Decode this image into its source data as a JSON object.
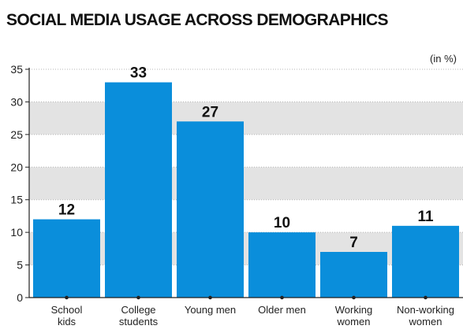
{
  "title": "SOCIAL MEDIA USAGE ACROSS DEMOGRAPHICS",
  "unit_note": "(in %)",
  "colors": {
    "bar": "#0a8edb",
    "band": "#e3e3e3",
    "axis": "#222222",
    "grid": "#b5b5b5"
  },
  "chart_data": {
    "type": "bar",
    "title": "SOCIAL MEDIA USAGE ACROSS DEMOGRAPHICS",
    "categories": [
      [
        "School",
        "kids"
      ],
      [
        "College",
        "students"
      ],
      [
        "Young men"
      ],
      [
        "Older men"
      ],
      [
        "Working",
        "women"
      ],
      [
        "Non-working",
        "women"
      ]
    ],
    "values": [
      12,
      33,
      27,
      10,
      7,
      11
    ],
    "data_labels": [
      "12",
      "33",
      "27",
      "10",
      "7",
      "11"
    ],
    "ylim": [
      0,
      35
    ],
    "yticks": [
      0,
      5,
      10,
      15,
      20,
      25,
      30,
      35
    ],
    "ytick_labels": [
      "0",
      "5",
      "10",
      "15",
      "20",
      "25",
      "30",
      "35"
    ],
    "xlabel": "",
    "ylabel": "",
    "grid": true,
    "alternating_bands": true,
    "legend": "none"
  }
}
